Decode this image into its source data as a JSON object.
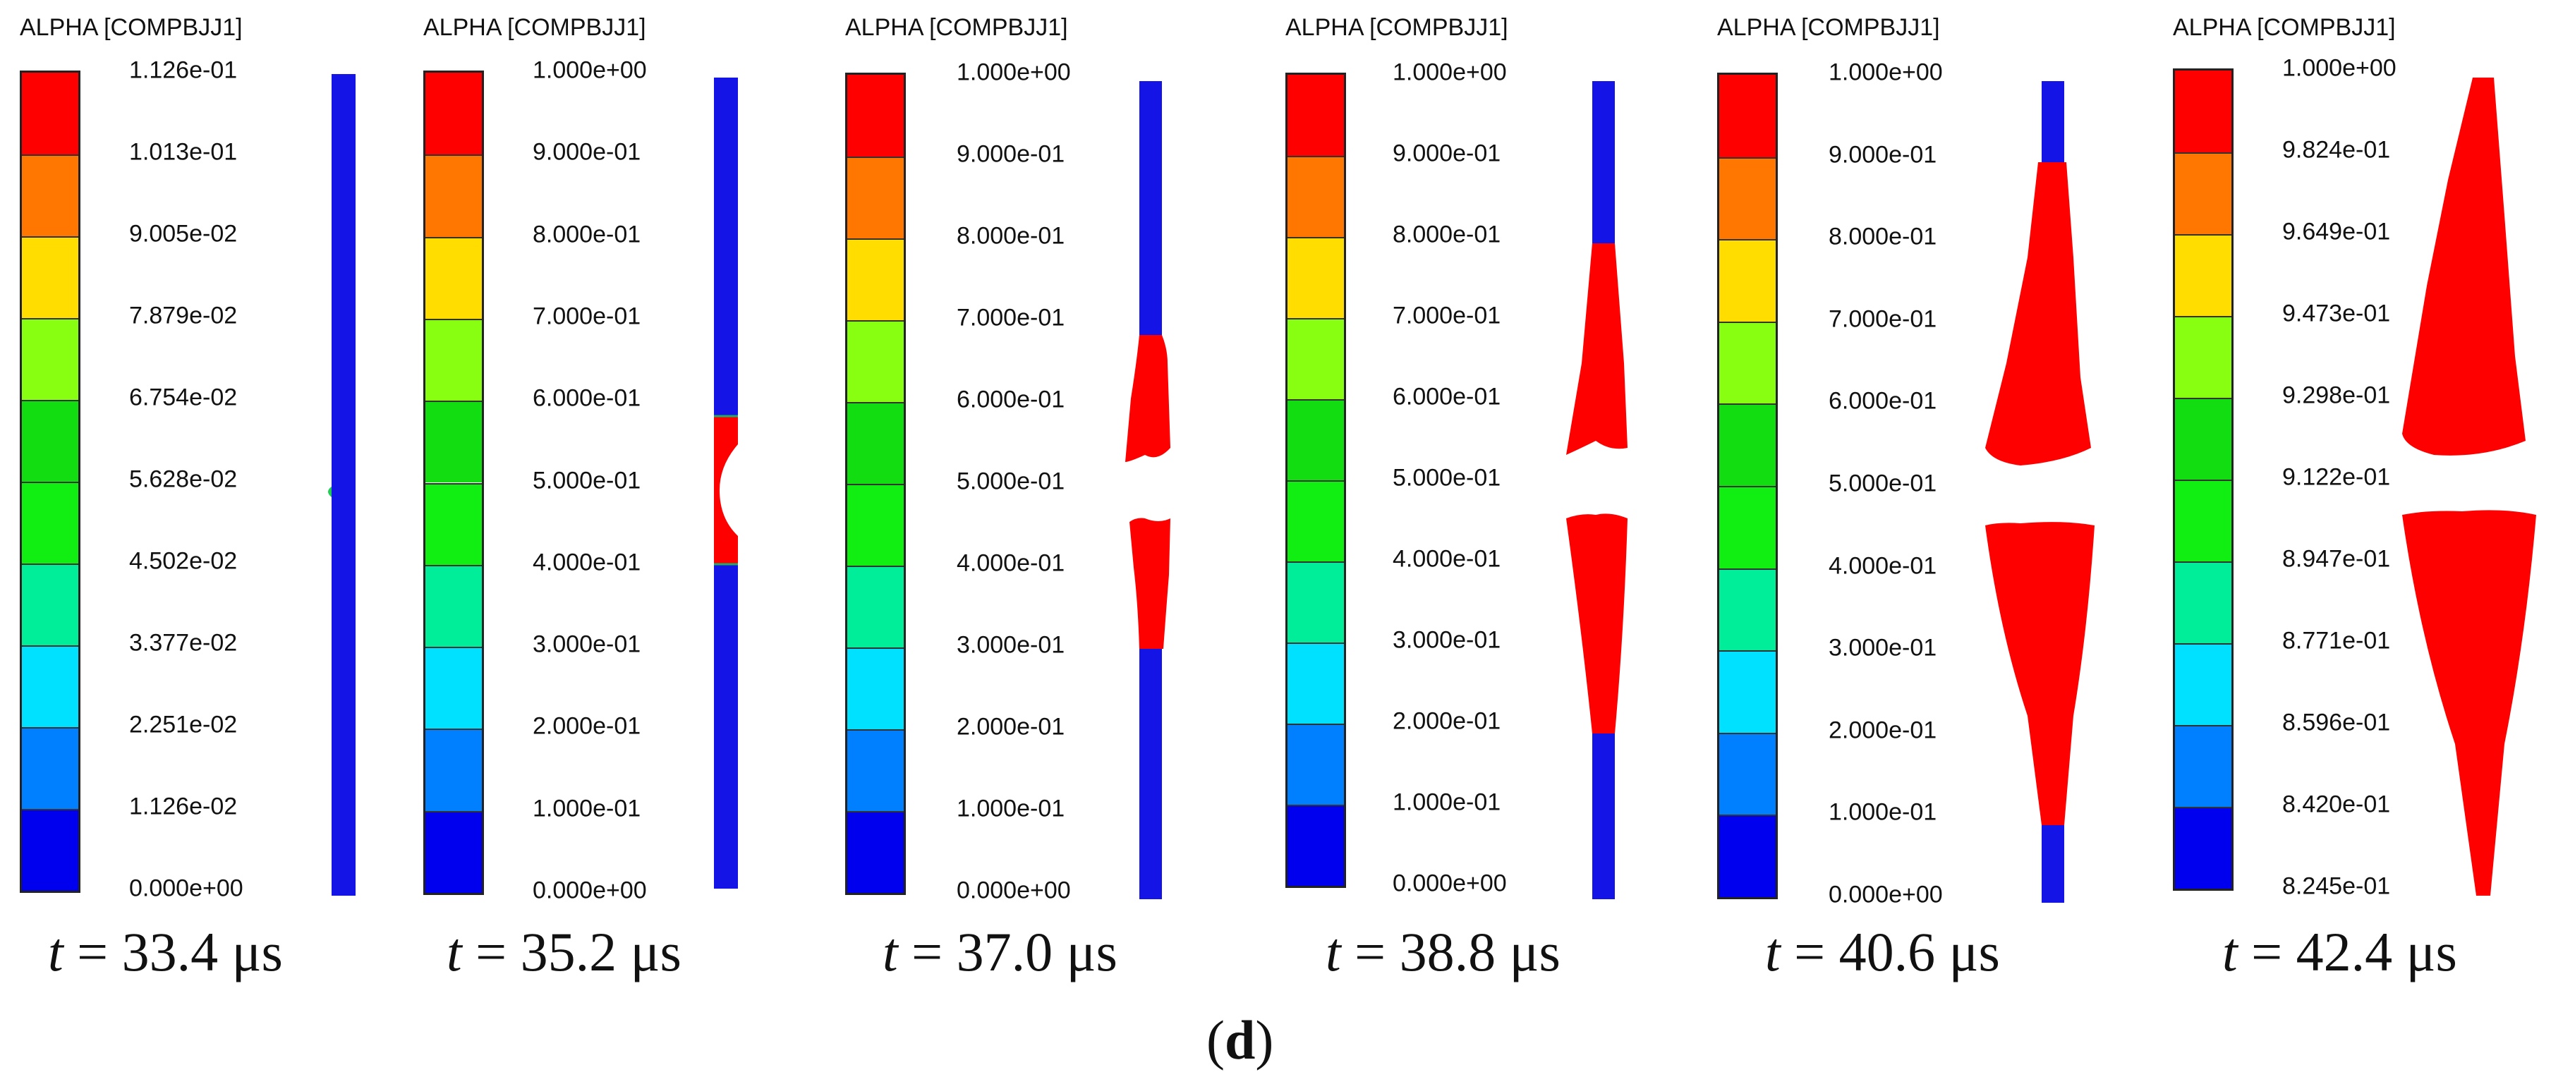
{
  "figure": {
    "variable_label": "ALPHA [COMPBJJ1]",
    "legend_colors": [
      "#ff0000",
      "#ff7700",
      "#ffdd00",
      "#88ff11",
      "#11dd11",
      "#11ee11",
      "#00ee99",
      "#00e0ff",
      "#0080ff",
      "#0000ee"
    ],
    "phase_liquid_color": "#ff0000",
    "phase_gas_color": "#1414e6",
    "panels": [
      {
        "time_label": {
          "t": "t",
          "rest": " = 33.4 μs"
        },
        "ticks": [
          "1.126e-01",
          "1.013e-01",
          "9.005e-02",
          "7.879e-02",
          "6.754e-02",
          "5.628e-02",
          "4.502e-02",
          "3.377e-02",
          "2.251e-02",
          "1.126e-02",
          "0.000e+00"
        ]
      },
      {
        "time_label": {
          "t": "t",
          "rest": " = 35.2 μs"
        },
        "ticks": [
          "1.000e+00",
          "9.000e-01",
          "8.000e-01",
          "7.000e-01",
          "6.000e-01",
          "5.000e-01",
          "4.000e-01",
          "3.000e-01",
          "2.000e-01",
          "1.000e-01",
          "0.000e+00"
        ]
      },
      {
        "time_label": {
          "t": "t",
          "rest": " = 37.0 μs"
        },
        "ticks": [
          "1.000e+00",
          "9.000e-01",
          "8.000e-01",
          "7.000e-01",
          "6.000e-01",
          "5.000e-01",
          "4.000e-01",
          "3.000e-01",
          "2.000e-01",
          "1.000e-01",
          "0.000e+00"
        ]
      },
      {
        "time_label": {
          "t": "t",
          "rest": " = 38.8 μs"
        },
        "ticks": [
          "1.000e+00",
          "9.000e-01",
          "8.000e-01",
          "7.000e-01",
          "6.000e-01",
          "5.000e-01",
          "4.000e-01",
          "3.000e-01",
          "2.000e-01",
          "1.000e-01",
          "0.000e+00"
        ]
      },
      {
        "time_label": {
          "t": "t",
          "rest": " = 40.6 μs"
        },
        "ticks": [
          "1.000e+00",
          "9.000e-01",
          "8.000e-01",
          "7.000e-01",
          "6.000e-01",
          "5.000e-01",
          "4.000e-01",
          "3.000e-01",
          "2.000e-01",
          "1.000e-01",
          "0.000e+00"
        ]
      },
      {
        "time_label": {
          "t": "t",
          "rest": " = 42.4 μs"
        },
        "ticks": [
          "1.000e+00",
          "9.824e-01",
          "9.649e-01",
          "9.473e-01",
          "9.298e-01",
          "9.122e-01",
          "8.947e-01",
          "8.771e-01",
          "8.596e-01",
          "8.420e-01",
          "8.245e-01"
        ]
      }
    ],
    "caption": {
      "open": "(",
      "letter": "d",
      "close": ")"
    }
  }
}
